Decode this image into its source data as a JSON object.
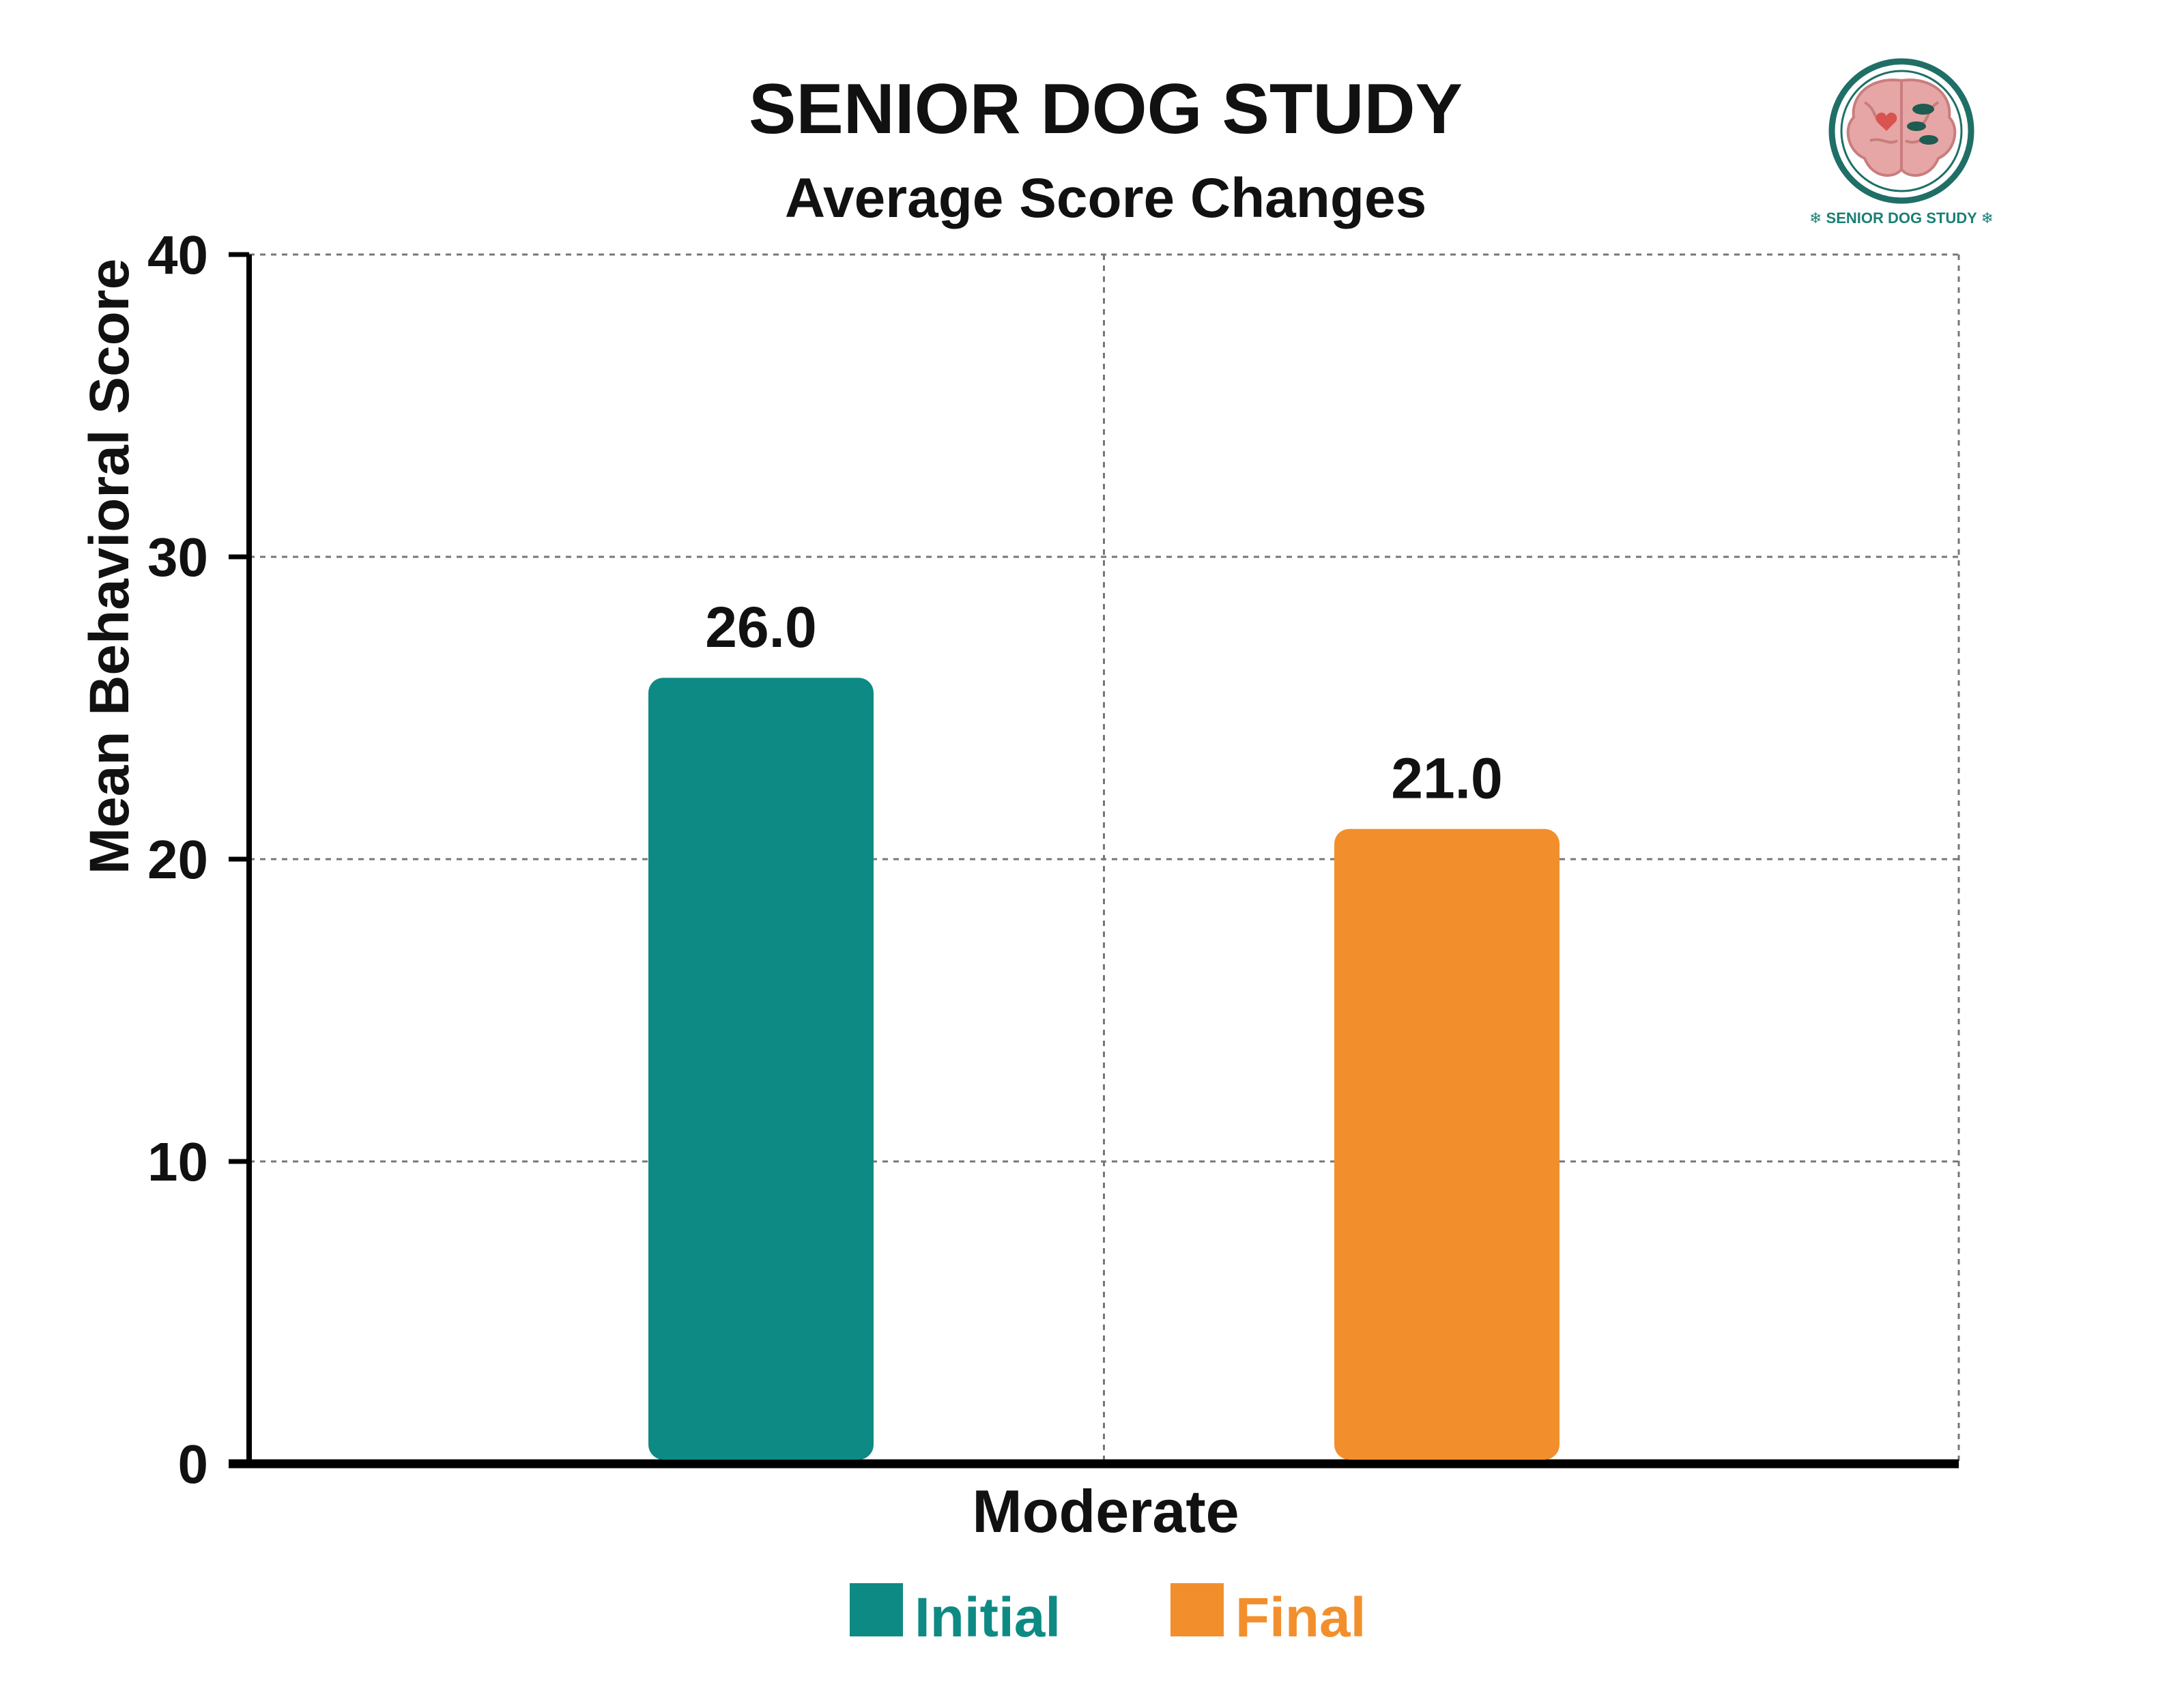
{
  "logo": {
    "text": "SENIOR DOG STUDY",
    "colors": {
      "ring": "#1f6f66",
      "brain": "#e7a6a6",
      "brain_fold": "#c97d7d",
      "accent": "#1b7f74"
    }
  },
  "chart_data": {
    "type": "bar",
    "title": "SENIOR DOG STUDY",
    "subtitle": "Average Score Changes",
    "xlabel": "",
    "ylabel": "Mean Behavioral Score",
    "categories": [
      "Moderate"
    ],
    "series": [
      {
        "name": "Initial",
        "values": [
          26.0
        ],
        "color": "#0e8a84",
        "label": "26.0"
      },
      {
        "name": "Final",
        "values": [
          21.0
        ],
        "color": "#f28f2c",
        "label": "21.0"
      }
    ],
    "ylim": [
      0,
      40
    ],
    "yticks": [
      0,
      10,
      20,
      30,
      40
    ],
    "ytick_labels": [
      "0",
      "10",
      "20",
      "30",
      "40"
    ],
    "grid": true,
    "legend_position": "bottom-center"
  }
}
